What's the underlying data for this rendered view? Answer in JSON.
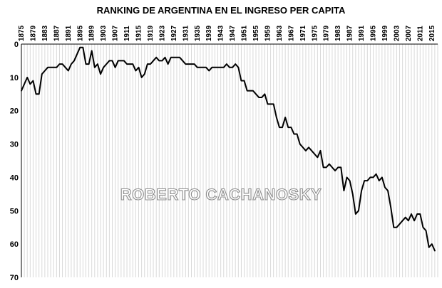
{
  "chart_data": {
    "type": "line",
    "title": "RANKING DE ARGENTINA  EN EL INGRESO PER CAPITA",
    "watermark": "ROBERTO CACHANOSKY",
    "xlabel": "",
    "ylabel": "",
    "x_tick_labels": [
      "1875",
      "1879",
      "1883",
      "1887",
      "1891",
      "1895",
      "1899",
      "1903",
      "1907",
      "1911",
      "1915",
      "1919",
      "1923",
      "1927",
      "1931",
      "1935",
      "1939",
      "1943",
      "1947",
      "1951",
      "1955",
      "1959",
      "1963",
      "1967",
      "1971",
      "1975",
      "1979",
      "1983",
      "1987",
      "1991",
      "1995",
      "1999",
      "2003",
      "2007",
      "2011",
      "2015"
    ],
    "y_tick_labels": [
      "0",
      "10",
      "20",
      "30",
      "40",
      "50",
      "60",
      "70"
    ],
    "xlim": [
      1875,
      2017
    ],
    "ylim": [
      0,
      70
    ],
    "y_inverted": true,
    "grid": {
      "vertical": true,
      "horizontal": false
    },
    "colors": {
      "line": "#000000",
      "grid": "#d9d9d9",
      "watermark_stroke": "#8c8c8c"
    },
    "x": [
      1875,
      1876,
      1877,
      1878,
      1879,
      1880,
      1881,
      1882,
      1883,
      1884,
      1885,
      1886,
      1887,
      1888,
      1889,
      1890,
      1891,
      1892,
      1893,
      1894,
      1895,
      1896,
      1897,
      1898,
      1899,
      1900,
      1901,
      1902,
      1903,
      1904,
      1905,
      1906,
      1907,
      1908,
      1909,
      1910,
      1911,
      1912,
      1913,
      1914,
      1915,
      1916,
      1917,
      1918,
      1919,
      1920,
      1921,
      1922,
      1923,
      1924,
      1925,
      1926,
      1927,
      1928,
      1929,
      1930,
      1931,
      1932,
      1933,
      1934,
      1935,
      1936,
      1937,
      1938,
      1939,
      1940,
      1941,
      1942,
      1943,
      1944,
      1945,
      1946,
      1947,
      1948,
      1949,
      1950,
      1951,
      1952,
      1953,
      1954,
      1955,
      1956,
      1957,
      1958,
      1959,
      1960,
      1961,
      1962,
      1963,
      1964,
      1965,
      1966,
      1967,
      1968,
      1969,
      1970,
      1971,
      1972,
      1973,
      1974,
      1975,
      1976,
      1977,
      1978,
      1979,
      1980,
      1981,
      1982,
      1983,
      1984,
      1985,
      1986,
      1987,
      1988,
      1989,
      1990,
      1991,
      1992,
      1993,
      1994,
      1995,
      1996,
      1997,
      1998,
      1999,
      2000,
      2001,
      2002,
      2003,
      2004,
      2005,
      2006,
      2007,
      2008,
      2009,
      2010,
      2011,
      2012,
      2013,
      2014,
      2015,
      2016
    ],
    "series": [
      {
        "values": [
          14,
          12,
          10,
          12,
          11,
          15,
          15,
          9,
          8,
          7,
          7,
          7,
          7,
          6,
          6,
          7,
          8,
          6,
          5,
          3,
          1,
          1,
          6,
          6,
          2,
          7,
          6,
          9,
          7,
          6,
          5,
          5,
          7,
          5,
          5,
          5,
          6,
          6,
          6,
          8,
          7,
          10,
          9,
          6,
          6,
          5,
          4,
          5,
          5,
          4,
          6,
          4,
          4,
          4,
          4,
          5,
          6,
          6,
          6,
          6,
          7,
          7,
          7,
          7,
          8,
          7,
          7,
          7,
          7,
          7,
          6,
          7,
          7,
          6,
          7,
          11,
          11,
          14,
          14,
          14,
          15,
          16,
          16,
          15,
          18,
          18,
          18,
          22,
          25,
          25,
          22,
          25,
          25,
          27,
          27,
          30,
          31,
          32,
          31,
          32,
          33,
          34,
          32,
          37,
          37,
          36,
          37,
          38,
          37,
          37,
          44,
          40,
          41,
          45,
          51,
          50,
          44,
          41,
          41,
          40,
          40,
          39,
          41,
          40,
          43,
          44,
          49,
          55,
          55,
          54,
          53,
          52,
          53,
          51,
          53,
          51,
          51,
          55,
          56,
          61,
          60,
          62
        ]
      }
    ]
  }
}
